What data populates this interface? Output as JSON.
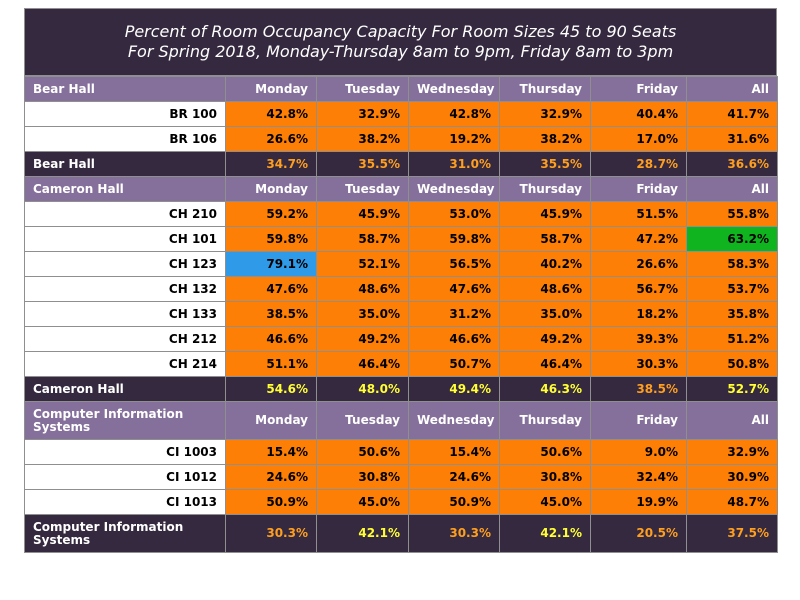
{
  "title": {
    "line1": "Percent of Room Occupancy Capacity For Room Sizes 45 to 90 Seats",
    "line2": "For Spring 2018, Monday-Thursday 8am to 9pm, Friday 8am to 3pm"
  },
  "colors": {
    "cell_default": "#fd7f05",
    "cell_high": "#10b41e",
    "cell_low": "#2f9ae8",
    "summary_text_orange": "#ff9f1f",
    "summary_text_yellow": "#ffff33",
    "header_bg": "#85709b",
    "summary_bg": "#35293f"
  },
  "chart_data": {
    "type": "table",
    "columns": [
      "Monday",
      "Tuesday",
      "Wednesday",
      "Thursday",
      "Friday",
      "All"
    ],
    "sections": [
      {
        "hall": "Bear Hall",
        "rows": [
          {
            "room": "BR 100",
            "values": [
              "42.8%",
              "32.9%",
              "42.8%",
              "32.9%",
              "40.4%",
              "41.7%"
            ],
            "colors": [
              "cell_default",
              "cell_default",
              "cell_default",
              "cell_default",
              "cell_default",
              "cell_default"
            ]
          },
          {
            "room": "BR 106",
            "values": [
              "26.6%",
              "38.2%",
              "19.2%",
              "38.2%",
              "17.0%",
              "31.6%"
            ],
            "colors": [
              "cell_default",
              "cell_default",
              "cell_default",
              "cell_default",
              "cell_default",
              "cell_default"
            ]
          }
        ],
        "summary": {
          "label": "Bear Hall",
          "values": [
            "34.7%",
            "35.5%",
            "31.0%",
            "35.5%",
            "28.7%",
            "36.6%"
          ],
          "text_colors": [
            "summary_text_orange",
            "summary_text_orange",
            "summary_text_orange",
            "summary_text_orange",
            "summary_text_orange",
            "summary_text_orange"
          ]
        }
      },
      {
        "hall": "Cameron Hall",
        "rows": [
          {
            "room": "CH 210",
            "values": [
              "59.2%",
              "45.9%",
              "53.0%",
              "45.9%",
              "51.5%",
              "55.8%"
            ],
            "colors": [
              "cell_default",
              "cell_default",
              "cell_default",
              "cell_default",
              "cell_default",
              "cell_default"
            ]
          },
          {
            "room": "CH 101",
            "values": [
              "59.8%",
              "58.7%",
              "59.8%",
              "58.7%",
              "47.2%",
              "63.2%"
            ],
            "colors": [
              "cell_default",
              "cell_default",
              "cell_default",
              "cell_default",
              "cell_default",
              "cell_high"
            ]
          },
          {
            "room": "CH 123",
            "values": [
              "79.1%",
              "52.1%",
              "56.5%",
              "40.2%",
              "26.6%",
              "58.3%"
            ],
            "colors": [
              "cell_low",
              "cell_default",
              "cell_default",
              "cell_default",
              "cell_default",
              "cell_default"
            ]
          },
          {
            "room": "CH 132",
            "values": [
              "47.6%",
              "48.6%",
              "47.6%",
              "48.6%",
              "56.7%",
              "53.7%"
            ],
            "colors": [
              "cell_default",
              "cell_default",
              "cell_default",
              "cell_default",
              "cell_default",
              "cell_default"
            ]
          },
          {
            "room": "CH 133",
            "values": [
              "38.5%",
              "35.0%",
              "31.2%",
              "35.0%",
              "18.2%",
              "35.8%"
            ],
            "colors": [
              "cell_default",
              "cell_default",
              "cell_default",
              "cell_default",
              "cell_default",
              "cell_default"
            ]
          },
          {
            "room": "CH 212",
            "values": [
              "46.6%",
              "49.2%",
              "46.6%",
              "49.2%",
              "39.3%",
              "51.2%"
            ],
            "colors": [
              "cell_default",
              "cell_default",
              "cell_default",
              "cell_default",
              "cell_default",
              "cell_default"
            ]
          },
          {
            "room": "CH 214",
            "values": [
              "51.1%",
              "46.4%",
              "50.7%",
              "46.4%",
              "30.3%",
              "50.8%"
            ],
            "colors": [
              "cell_default",
              "cell_default",
              "cell_default",
              "cell_default",
              "cell_default",
              "cell_default"
            ]
          }
        ],
        "summary": {
          "label": "Cameron Hall",
          "values": [
            "54.6%",
            "48.0%",
            "49.4%",
            "46.3%",
            "38.5%",
            "52.7%"
          ],
          "text_colors": [
            "summary_text_yellow",
            "summary_text_yellow",
            "summary_text_yellow",
            "summary_text_yellow",
            "summary_text_orange",
            "summary_text_yellow"
          ]
        }
      },
      {
        "hall": "Computer Information Systems",
        "rows": [
          {
            "room": "CI 1003",
            "values": [
              "15.4%",
              "50.6%",
              "15.4%",
              "50.6%",
              "9.0%",
              "32.9%"
            ],
            "colors": [
              "cell_default",
              "cell_default",
              "cell_default",
              "cell_default",
              "cell_default",
              "cell_default"
            ]
          },
          {
            "room": "CI 1012",
            "values": [
              "24.6%",
              "30.8%",
              "24.6%",
              "30.8%",
              "32.4%",
              "30.9%"
            ],
            "colors": [
              "cell_default",
              "cell_default",
              "cell_default",
              "cell_default",
              "cell_default",
              "cell_default"
            ]
          },
          {
            "room": "CI 1013",
            "values": [
              "50.9%",
              "45.0%",
              "50.9%",
              "45.0%",
              "19.9%",
              "48.7%"
            ],
            "colors": [
              "cell_default",
              "cell_default",
              "cell_default",
              "cell_default",
              "cell_default",
              "cell_default"
            ]
          }
        ],
        "summary": {
          "label": "Computer Information Systems",
          "values": [
            "30.3%",
            "42.1%",
            "30.3%",
            "42.1%",
            "20.5%",
            "37.5%"
          ],
          "text_colors": [
            "summary_text_orange",
            "summary_text_yellow",
            "summary_text_orange",
            "summary_text_yellow",
            "summary_text_orange",
            "summary_text_orange"
          ]
        }
      }
    ]
  }
}
